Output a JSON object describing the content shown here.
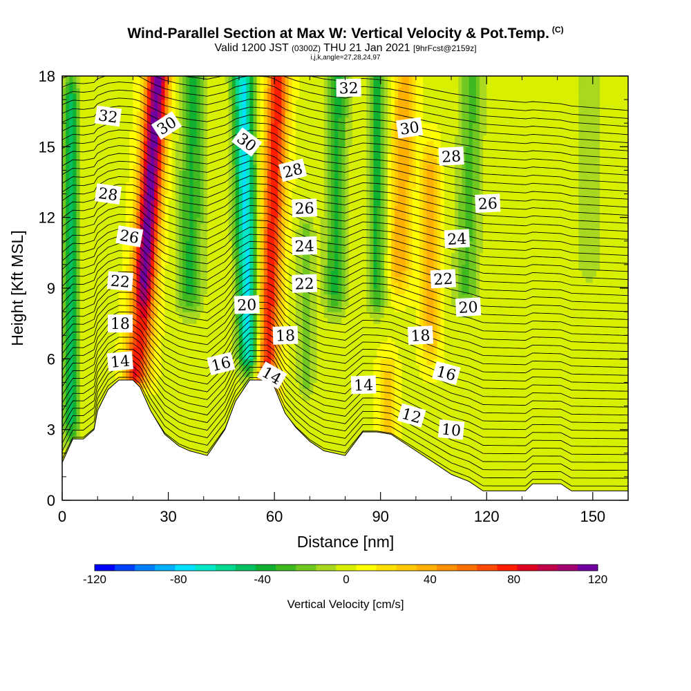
{
  "title": "Wind-Parallel Section at Max W: Vertical Velocity & Pot.Temp.",
  "title_mark": "(C)",
  "subtitle_a": "Valid 1200 JST ",
  "subtitle_b": "(0300Z)",
  "subtitle_c": " THU 21 Jan 2021 ",
  "subtitle_d": "[9hrFcst@2159z]",
  "subtitle2": "i,j,k,angle=27,28,24,97",
  "chart_data": {
    "type": "heatmap",
    "xlabel": "Distance [nm]",
    "ylabel": "Height [Kft MSL]",
    "xlim": [
      0,
      160
    ],
    "ylim": [
      0,
      18
    ],
    "x_ticks": [
      "0",
      "30",
      "60",
      "90",
      "120",
      "150"
    ],
    "y_ticks": [
      "0",
      "3",
      "6",
      "9",
      "12",
      "15",
      "18"
    ],
    "colorbar": {
      "label": "Vertical Velocity [cm/s]",
      "min": -120,
      "max": 120,
      "step": 10,
      "tick_labels": [
        "-120",
        "-80",
        "-40",
        "0",
        "40",
        "80",
        "120"
      ],
      "colors": [
        "#0000ff",
        "#0040ff",
        "#0080ff",
        "#00b0ff",
        "#00e0ff",
        "#00e8c8",
        "#00d890",
        "#00c060",
        "#10b030",
        "#40b820",
        "#70c820",
        "#a8d820",
        "#d8f000",
        "#ffff00",
        "#ffe000",
        "#ffc800",
        "#ffb000",
        "#ff9000",
        "#ff7000",
        "#ff4800",
        "#ff1e00",
        "#e00020",
        "#c00048",
        "#a00070",
        "#7000a0"
      ]
    },
    "terrain": [
      [
        0,
        1.6
      ],
      [
        3,
        2.6
      ],
      [
        6,
        2.6
      ],
      [
        9,
        3.0
      ],
      [
        10,
        3.8
      ],
      [
        13,
        4.7
      ],
      [
        16,
        5.1
      ],
      [
        20,
        5.1
      ],
      [
        22,
        4.8
      ],
      [
        25,
        3.8
      ],
      [
        29,
        2.8
      ],
      [
        33,
        2.3
      ],
      [
        36,
        2.1
      ],
      [
        41,
        1.9
      ],
      [
        46,
        3.0
      ],
      [
        49,
        4.2
      ],
      [
        53,
        5.1
      ],
      [
        58,
        5.1
      ],
      [
        60,
        4.8
      ],
      [
        63,
        3.7
      ],
      [
        66,
        3.1
      ],
      [
        70,
        2.5
      ],
      [
        74,
        2.1
      ],
      [
        80,
        1.9
      ],
      [
        85,
        2.9
      ],
      [
        89,
        2.9
      ],
      [
        93,
        2.8
      ],
      [
        98,
        2.3
      ],
      [
        104,
        1.7
      ],
      [
        110,
        1.1
      ],
      [
        115,
        0.8
      ],
      [
        119,
        0.4
      ],
      [
        131,
        0.4
      ],
      [
        133,
        0.7
      ],
      [
        141,
        0.7
      ],
      [
        144,
        0.4
      ],
      [
        160,
        0.4
      ]
    ],
    "contour_labels": [
      {
        "text": "32",
        "x": 13.0,
        "y": 16.3,
        "angle": 8
      },
      {
        "text": "30",
        "x": 29.5,
        "y": 15.9,
        "angle": -33
      },
      {
        "text": "30",
        "x": 52.2,
        "y": 15.2,
        "angle": 37
      },
      {
        "text": "32",
        "x": 81.0,
        "y": 17.5,
        "angle": -1
      },
      {
        "text": "30",
        "x": 98.2,
        "y": 15.8,
        "angle": -8
      },
      {
        "text": "28",
        "x": 110.0,
        "y": 14.6,
        "angle": -3
      },
      {
        "text": "28",
        "x": 13.0,
        "y": 13.0,
        "angle": 8
      },
      {
        "text": "28",
        "x": 65.2,
        "y": 14.0,
        "angle": -14
      },
      {
        "text": "26",
        "x": 19.0,
        "y": 11.2,
        "angle": 10
      },
      {
        "text": "26",
        "x": 68.5,
        "y": 12.4,
        "angle": -2
      },
      {
        "text": "26",
        "x": 120.3,
        "y": 12.6,
        "angle": -3
      },
      {
        "text": "24",
        "x": 68.5,
        "y": 10.8,
        "angle": -2
      },
      {
        "text": "24",
        "x": 111.6,
        "y": 11.1,
        "angle": -3
      },
      {
        "text": "22",
        "x": 16.4,
        "y": 9.3,
        "angle": 5
      },
      {
        "text": "22",
        "x": 68.5,
        "y": 9.2,
        "angle": -2
      },
      {
        "text": "22",
        "x": 107.7,
        "y": 9.4,
        "angle": -3
      },
      {
        "text": "20",
        "x": 52.2,
        "y": 8.3,
        "angle": -2
      },
      {
        "text": "20",
        "x": 114.8,
        "y": 8.2,
        "angle": -3
      },
      {
        "text": "18",
        "x": 16.4,
        "y": 7.5,
        "angle": 0
      },
      {
        "text": "18",
        "x": 63.1,
        "y": 7.0,
        "angle": -2
      },
      {
        "text": "18",
        "x": 101.3,
        "y": 7.0,
        "angle": -3
      },
      {
        "text": "16",
        "x": 44.9,
        "y": 5.8,
        "angle": -14
      },
      {
        "text": "16",
        "x": 108.6,
        "y": 5.4,
        "angle": 15
      },
      {
        "text": "14",
        "x": 16.4,
        "y": 5.9,
        "angle": -5
      },
      {
        "text": "14",
        "x": 59.3,
        "y": 5.3,
        "angle": 30
      },
      {
        "text": "14",
        "x": 85.2,
        "y": 4.9,
        "angle": -2
      },
      {
        "text": "12",
        "x": 98.8,
        "y": 3.6,
        "angle": 16
      },
      {
        "text": "10",
        "x": 110.0,
        "y": 3.0,
        "angle": 6
      }
    ],
    "vertical_velocity_features": [
      {
        "x": 27,
        "peak": 120,
        "width": 3.2,
        "yTop": 18,
        "yBot": 5.5,
        "tilt": -0.45
      },
      {
        "x": 37,
        "peak": -40,
        "width": 3.5,
        "yTop": 18,
        "yBot": 9,
        "tilt": -0.1
      },
      {
        "x": 51,
        "peak": -80,
        "width": 3.0,
        "yTop": 18,
        "yBot": 6.5,
        "tilt": 0.15
      },
      {
        "x": 61,
        "peak": 80,
        "width": 3.0,
        "yTop": 18,
        "yBot": 5,
        "tilt": -0.25
      },
      {
        "x": 2.5,
        "peak": -50,
        "width": 2.2,
        "yTop": 17,
        "yBot": 3.5,
        "tilt": 0
      },
      {
        "x": 22,
        "peak": -40,
        "width": 2.5,
        "yTop": 7.5,
        "yBot": 4.5,
        "tilt": 0
      },
      {
        "x": 69,
        "peak": -25,
        "width": 2.5,
        "yTop": 11,
        "yBot": 5.5,
        "tilt": 0
      },
      {
        "x": 78,
        "peak": -40,
        "width": 3.0,
        "yTop": 18,
        "yBot": 9,
        "tilt": -0.1
      },
      {
        "x": 89,
        "peak": -40,
        "width": 2.5,
        "yTop": 18,
        "yBot": 9,
        "tilt": 0
      },
      {
        "x": 97,
        "peak": 40,
        "width": 3.0,
        "yTop": 18,
        "yBot": 10,
        "tilt": -0.2
      },
      {
        "x": 104,
        "peak": 35,
        "width": 2.5,
        "yTop": 14,
        "yBot": 7,
        "tilt": 0
      },
      {
        "x": 116,
        "peak": -30,
        "width": 3.5,
        "yTop": 18,
        "yBot": 9,
        "tilt": -0.2
      },
      {
        "x": 92,
        "peak": 30,
        "width": 2.5,
        "yTop": 5,
        "yBot": 3,
        "tilt": 0
      },
      {
        "x": 149,
        "peak": -12,
        "width": 4.0,
        "yTop": 18,
        "yBot": 10,
        "tilt": 0
      }
    ],
    "grid": false,
    "legend": "colorbar-bottom"
  }
}
